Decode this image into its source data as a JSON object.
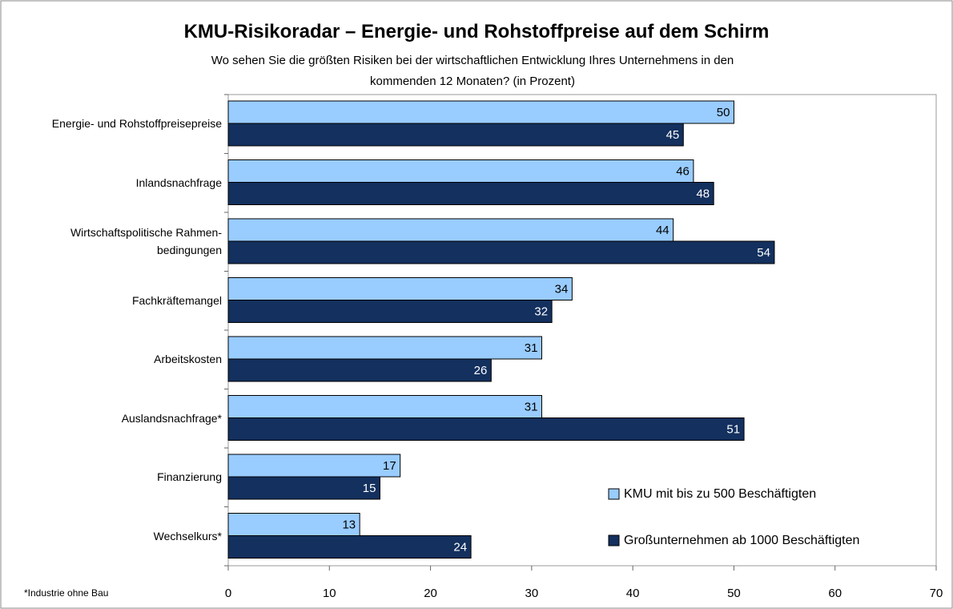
{
  "chart_data": {
    "type": "bar",
    "orientation": "horizontal",
    "title": "KMU-Risikoradar – Energie- und Rohstoffpreise auf dem Schirm",
    "subtitle": "Wo sehen Sie die größten Risiken bei der wirtschaftlichen Entwicklung Ihres Unternehmens in den\nkommenden 12 Monaten? (in Prozent)",
    "categories": [
      "Energie- und Rohstoffpreisepreise",
      "Inlandsnachfrage",
      "Wirtschaftspolitische Rahmen-\nbedingungen",
      "Fachkräftemangel",
      "Arbeitskosten",
      "Auslandsnachfrage*",
      "Finanzierung",
      "Wechselkurs*"
    ],
    "series": [
      {
        "name": "KMU mit bis zu 500 Beschäftigten",
        "color": "#99ccff",
        "values": [
          50,
          46,
          44,
          34,
          31,
          31,
          17,
          13
        ]
      },
      {
        "name": "Großunternehmen ab 1000 Beschäftigten",
        "color": "#13305e",
        "values": [
          45,
          48,
          54,
          32,
          26,
          51,
          15,
          24
        ]
      }
    ],
    "xlim": [
      0,
      70
    ],
    "xticks": [
      0,
      10,
      20,
      30,
      40,
      50,
      60,
      70
    ],
    "legend": "lower right",
    "annotation": "*Industrie ohne Bau"
  }
}
